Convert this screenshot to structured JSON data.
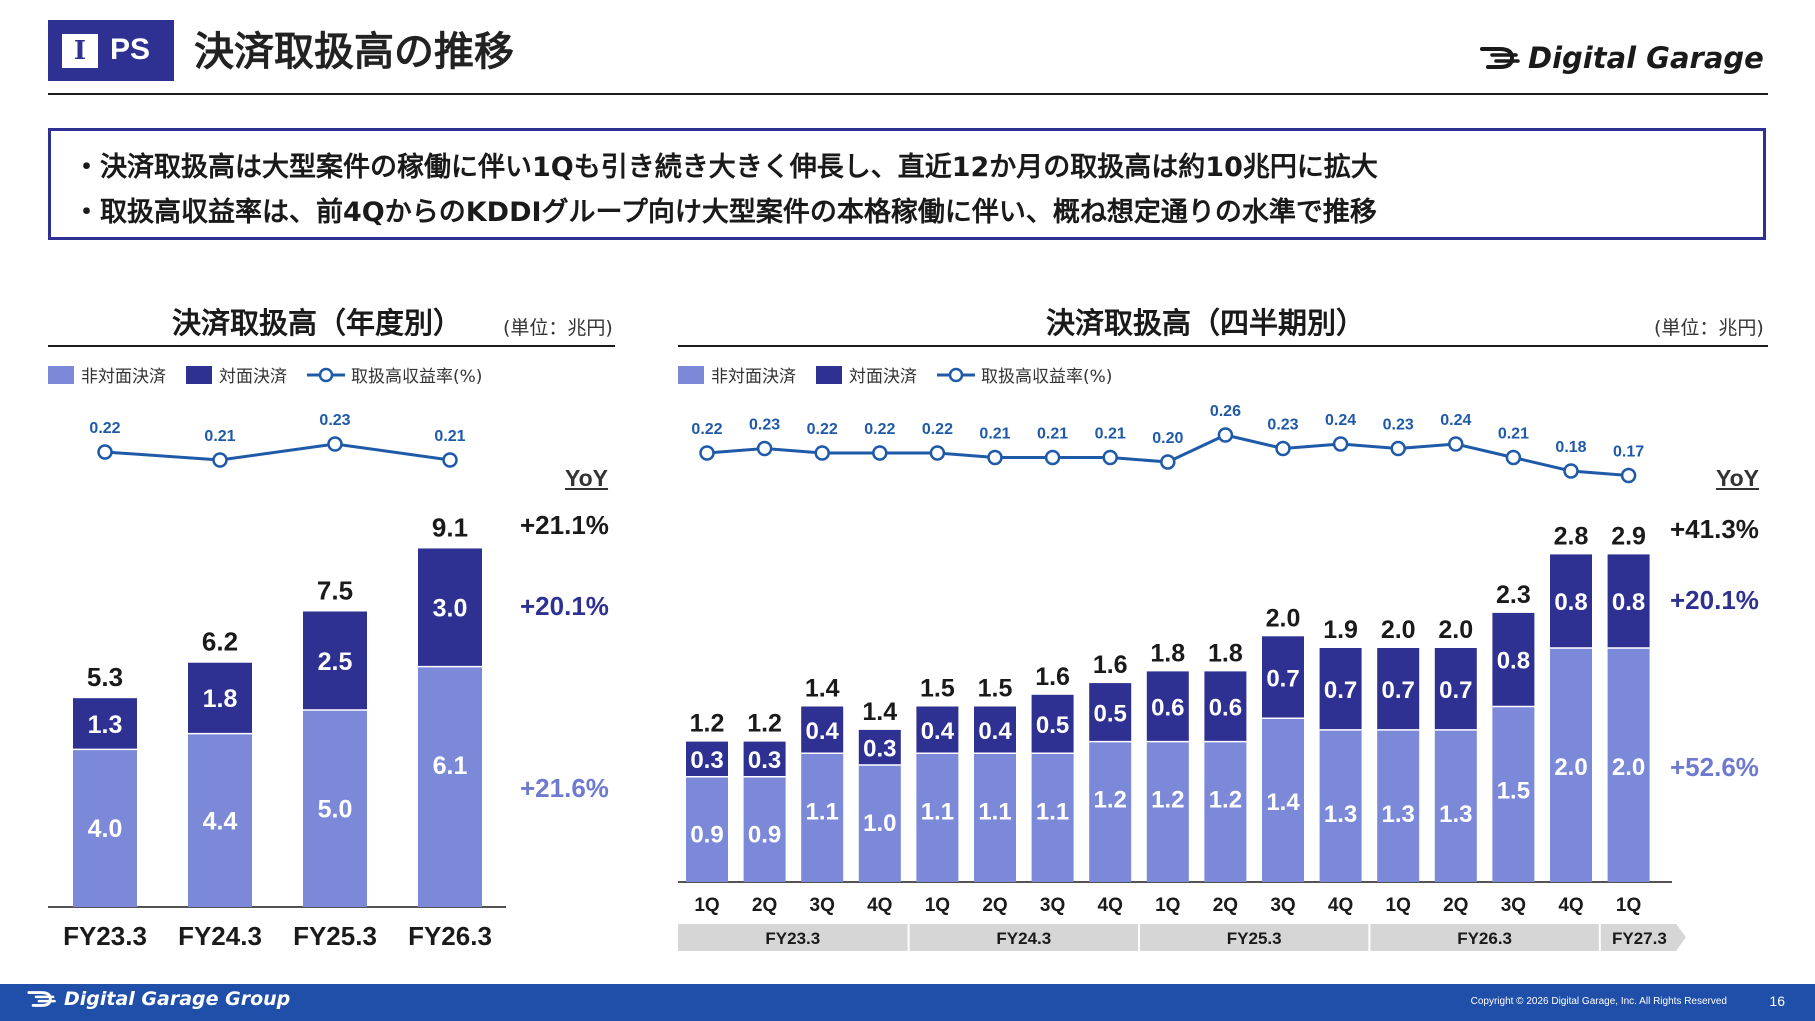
{
  "header": {
    "badge_roman": "I",
    "badge_text": "PS",
    "title": "決済取扱高の推移",
    "logo_text": "Digital Garage"
  },
  "summary": {
    "bullets": [
      "決済取扱高は大型案件の稼働に伴い1Qも引き続き大きく伸長し、直近12か月の取扱高は約10兆円に拡大",
      "取扱高収益率は、前4QからのKDDIグループ向け大型案件の本格稼働に伴い、概ね想定通りの水準で推移"
    ]
  },
  "legend": {
    "non_face": "非対面決済",
    "face": "対面決済",
    "rate": "取扱高収益率(%)"
  },
  "colors": {
    "non_face": "#7b89d8",
    "face": "#2e3192",
    "rate_line": "#1f5aa8",
    "brand": "#2e3192",
    "footer": "#1f4fa8",
    "yoy_total": "#1a1a1a",
    "yoy_face": "#2e3192",
    "yoy_non_face": "#6e7ad0"
  },
  "annual": {
    "title": "決済取扱高（年度別）",
    "unit": "(単位：兆円)",
    "yoy_label": "YoY",
    "yoy": {
      "total": "+21.1%",
      "face": "+20.1%",
      "non_face": "+21.6%"
    }
  },
  "quarterly": {
    "title": "決済取扱高（四半期別）",
    "unit": "(単位：兆円)",
    "yoy_label": "YoY",
    "yoy": {
      "total": "+41.3%",
      "face": "+20.1%",
      "non_face": "+52.6%"
    }
  },
  "footer": {
    "brand": "Digital Garage Group",
    "copyright": "Copyright © 2026 Digital Garage, Inc. All Rights Reserved",
    "page": "16"
  },
  "chart_data": [
    {
      "type": "bar",
      "stacked": true,
      "title": "決済取扱高（年度別）",
      "unit": "(単位：兆円)",
      "categories": [
        "FY23.3",
        "FY24.3",
        "FY25.3",
        "FY26.3"
      ],
      "series": [
        {
          "name": "非対面決済",
          "values": [
            4.0,
            4.4,
            5.0,
            6.1
          ]
        },
        {
          "name": "対面決済",
          "values": [
            1.3,
            1.8,
            2.5,
            3.0
          ]
        }
      ],
      "totals": [
        5.3,
        6.2,
        7.5,
        9.1
      ],
      "line": {
        "name": "取扱高収益率(%)",
        "values": [
          0.22,
          0.21,
          0.23,
          0.21
        ]
      },
      "legend": "top-left"
    },
    {
      "type": "bar",
      "stacked": true,
      "title": "決済取扱高（四半期別）",
      "unit": "(単位：兆円)",
      "categories": [
        "1Q",
        "2Q",
        "3Q",
        "4Q",
        "1Q",
        "2Q",
        "3Q",
        "4Q",
        "1Q",
        "2Q",
        "3Q",
        "4Q",
        "1Q",
        "2Q",
        "3Q",
        "4Q",
        "1Q"
      ],
      "groups": [
        {
          "label": "FY23.3",
          "span": 4
        },
        {
          "label": "FY24.3",
          "span": 4
        },
        {
          "label": "FY25.3",
          "span": 4
        },
        {
          "label": "FY26.3",
          "span": 4
        },
        {
          "label": "FY27.3",
          "span": 1
        }
      ],
      "series": [
        {
          "name": "非対面決済",
          "values": [
            0.9,
            0.9,
            1.1,
            1.0,
            1.1,
            1.1,
            1.1,
            1.2,
            1.2,
            1.2,
            1.4,
            1.3,
            1.3,
            1.3,
            1.5,
            2.0,
            2.0
          ]
        },
        {
          "name": "対面決済",
          "values": [
            0.3,
            0.3,
            0.4,
            0.3,
            0.4,
            0.4,
            0.5,
            0.5,
            0.6,
            0.6,
            0.7,
            0.7,
            0.7,
            0.7,
            0.8,
            0.8,
            0.8
          ]
        }
      ],
      "totals": [
        1.2,
        1.2,
        1.4,
        1.4,
        1.5,
        1.5,
        1.6,
        1.6,
        1.8,
        1.8,
        2.0,
        1.9,
        2.0,
        2.0,
        2.3,
        2.8,
        2.9
      ],
      "line": {
        "name": "取扱高収益率(%)",
        "values": [
          0.22,
          0.23,
          0.22,
          0.22,
          0.22,
          0.21,
          0.21,
          0.21,
          0.2,
          0.26,
          0.23,
          0.24,
          0.23,
          0.24,
          0.21,
          0.18,
          0.17
        ]
      },
      "legend": "top-left"
    }
  ]
}
